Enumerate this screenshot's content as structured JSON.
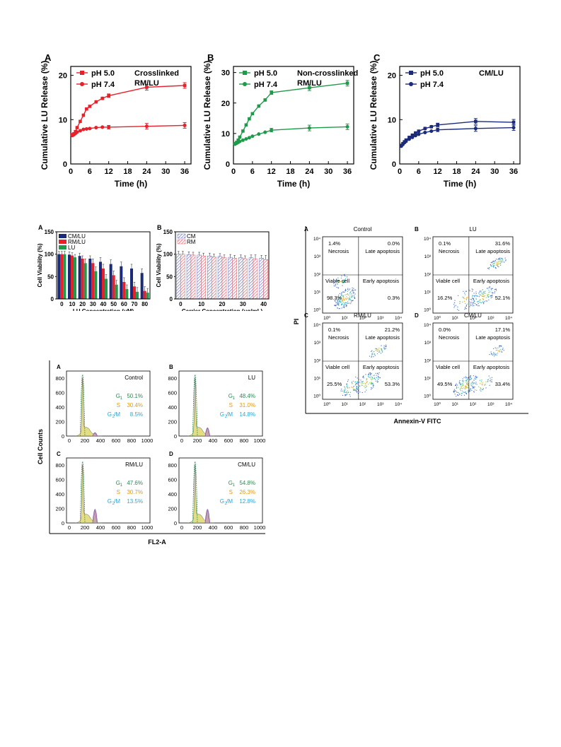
{
  "chart_data": [
    {
      "panel": "A",
      "type": "line",
      "title": "Crosslinked RM/LU",
      "xlabel": "Time (h)",
      "ylabel": "Cumulative LU Release (%)",
      "xlim": [
        0,
        38
      ],
      "ylim": [
        0,
        22
      ],
      "xticks": [
        "0",
        "6",
        "12",
        "18",
        "24",
        "30",
        "36"
      ],
      "yticks": [
        "0",
        "10",
        "20"
      ],
      "x": [
        0.5,
        1,
        1.5,
        2,
        3,
        4,
        5,
        6,
        8,
        10,
        12,
        24,
        36
      ],
      "series": [
        {
          "name": "pH 5.0",
          "color": "#e8202a",
          "marker": "square",
          "values": [
            6.6,
            6.8,
            7.3,
            8.2,
            9.6,
            11.0,
            12.4,
            13.0,
            14.0,
            14.8,
            15.4,
            17.3,
            17.7
          ]
        },
        {
          "name": "pH 7.4",
          "color": "#e8202a",
          "marker": "circle",
          "values": [
            6.4,
            6.6,
            6.9,
            7.2,
            7.5,
            7.8,
            7.9,
            8.0,
            8.2,
            8.3,
            8.3,
            8.5,
            8.7
          ]
        }
      ]
    },
    {
      "panel": "B",
      "type": "line",
      "title": "Non-crosslinked RM/LU",
      "xlabel": "Time (h)",
      "ylabel": "Cumulative LU Release (%)",
      "xlim": [
        0,
        38
      ],
      "ylim": [
        0,
        32
      ],
      "xticks": [
        "0",
        "6",
        "12",
        "18",
        "24",
        "30",
        "36"
      ],
      "yticks": [
        "0",
        "10",
        "20",
        "30"
      ],
      "x": [
        0.5,
        1,
        1.5,
        2,
        3,
        4,
        5,
        6,
        8,
        10,
        12,
        24,
        36
      ],
      "series": [
        {
          "name": "pH 5.0",
          "color": "#1f9a4b",
          "marker": "square",
          "values": [
            6.7,
            7.1,
            7.8,
            8.8,
            10.8,
            12.8,
            14.8,
            16.5,
            19.0,
            21.0,
            23.4,
            25.0,
            26.5
          ]
        },
        {
          "name": "pH 7.4",
          "color": "#1f9a4b",
          "marker": "circle",
          "values": [
            6.5,
            6.8,
            7.1,
            7.4,
            7.8,
            8.2,
            8.6,
            9.1,
            9.8,
            10.4,
            11.1,
            11.8,
            12.2
          ]
        }
      ]
    },
    {
      "panel": "C",
      "type": "line",
      "title": "CM/LU",
      "xlabel": "Time (h)",
      "ylabel": "Cumulative LU Release (%)",
      "xlim": [
        0,
        38
      ],
      "ylim": [
        0,
        22
      ],
      "xticks": [
        "0",
        "6",
        "12",
        "18",
        "24",
        "30",
        "36"
      ],
      "yticks": [
        "0",
        "10",
        "20"
      ],
      "x": [
        0.5,
        1,
        1.5,
        2,
        3,
        4,
        5,
        6,
        8,
        10,
        12,
        24,
        36
      ],
      "series": [
        {
          "name": "pH 5.0",
          "color": "#1c2a7a",
          "marker": "square",
          "values": [
            4.2,
            4.6,
            5.0,
            5.4,
            6.0,
            6.5,
            7.0,
            7.4,
            8.0,
            8.4,
            8.8,
            9.6,
            9.4
          ]
        },
        {
          "name": "pH 7.4",
          "color": "#1c2a7a",
          "marker": "circle",
          "values": [
            4.0,
            4.4,
            4.8,
            5.1,
            5.6,
            6.0,
            6.4,
            6.7,
            7.1,
            7.4,
            7.7,
            8.0,
            8.2
          ]
        }
      ]
    },
    {
      "panel": "A",
      "type": "bar",
      "title": "",
      "xlabel": "LU Concentration (μM)",
      "ylabel": "Cell Viability (%)",
      "ylim": [
        0,
        150
      ],
      "yticks": [
        "0",
        "50",
        "100",
        "150"
      ],
      "categories": [
        "0",
        "10",
        "20",
        "30",
        "40",
        "50",
        "60",
        "70",
        "80"
      ],
      "series": [
        {
          "name": "CM/LU",
          "color": "#1c2a7a",
          "values": [
            100,
            99,
            96,
            90,
            83,
            78,
            73,
            68,
            58
          ]
        },
        {
          "name": "RM/LU",
          "color": "#e8202a",
          "values": [
            100,
            97,
            90,
            80,
            68,
            53,
            38,
            28,
            18
          ]
        },
        {
          "name": "LU",
          "color": "#1f9a4b",
          "values": [
            100,
            93,
            80,
            62,
            45,
            32,
            22,
            16,
            14
          ]
        }
      ]
    },
    {
      "panel": "B",
      "type": "bar",
      "title": "",
      "xlabel": "Carrier Concentration (μg/mL)",
      "ylabel": "Cell Viability (%)",
      "ylim": [
        0,
        150
      ],
      "yticks": [
        "0",
        "50",
        "100",
        "150"
      ],
      "categories": [
        "0",
        "5",
        "10",
        "15",
        "20",
        "25",
        "30",
        "35",
        "40"
      ],
      "xticks": [
        "0",
        "10",
        "20",
        "30",
        "40"
      ],
      "series": [
        {
          "name": "CM",
          "color": "#6e74c0",
          "values": [
            100,
            99,
            98,
            96,
            95,
            93,
            92,
            92,
            91
          ]
        },
        {
          "name": "RM",
          "color": "#e8606a",
          "values": [
            100,
            98,
            96,
            94,
            92,
            91,
            90,
            89,
            88
          ]
        }
      ]
    }
  ],
  "flow": {
    "xlabel": "Annexin-V FITC",
    "ylabel": "PI",
    "ticks": [
      "10⁰",
      "10¹",
      "10²",
      "10³",
      "10⁴"
    ],
    "quad_labels": {
      "necrosis": "Necrosis",
      "late": "Late apoptosis",
      "viable": "Viable cell",
      "early": "Early apoptosis"
    },
    "panels": [
      {
        "letter": "A",
        "title": "Control",
        "ul": "1.4%",
        "ur": "0.0%",
        "ll": "98.3%",
        "lr": "0.3%"
      },
      {
        "letter": "B",
        "title": "LU",
        "ul": "0.1%",
        "ur": "31.6%",
        "ll": "16.2%",
        "lr": "52.1%"
      },
      {
        "letter": "C",
        "title": "RM/LU",
        "ul": "0.1%",
        "ur": "21.2%",
        "ll": "25.5%",
        "lr": "53.3%"
      },
      {
        "letter": "D",
        "title": "CM/LU",
        "ul": "0.0%",
        "ur": "17.1%",
        "ll": "49.5%",
        "lr": "33.4%"
      }
    ]
  },
  "cycle": {
    "xlabel": "FL2-A",
    "ylabel": "Cell Counts",
    "yticks": [
      "0",
      "200",
      "400",
      "600",
      "800"
    ],
    "xticks": [
      "0",
      "200",
      "400",
      "600",
      "800",
      "1000"
    ],
    "panels": [
      {
        "letter": "A",
        "title": "Control",
        "g1": "50.1%",
        "s": "30.4%",
        "g2m": "8.5%"
      },
      {
        "letter": "B",
        "title": "LU",
        "g1": "48.4%",
        "s": "31.0%",
        "g2m": "14.8%"
      },
      {
        "letter": "C",
        "title": "RM/LU",
        "g1": "47.6%",
        "s": "30.7%",
        "g2m": "13.5%"
      },
      {
        "letter": "D",
        "title": "CM/LU",
        "g1": "54.8%",
        "s": "26.3%",
        "g2m": "12.8%"
      }
    ],
    "g1_label": "G",
    "g1_sub": "1",
    "s_label": "S",
    "g2m_label": "G",
    "g2m_sub": "2",
    "g2m_tail": "/M"
  },
  "colors": {
    "red": "#e8202a",
    "green": "#1f9a4b",
    "navy": "#1c2a7a",
    "g1_text": "#2e8b57",
    "s_text": "#e39b14",
    "g2m_text": "#2aa7d9"
  }
}
